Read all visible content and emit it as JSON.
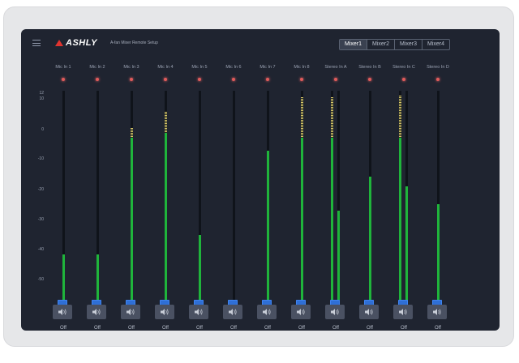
{
  "app": {
    "brand": "ASHLY",
    "subtitle": "A-fan Mixer Remote Setup"
  },
  "mixer_tabs": [
    {
      "label": "Mixer1",
      "active": true
    },
    {
      "label": "Mixer2",
      "active": false
    },
    {
      "label": "Mixer3",
      "active": false
    },
    {
      "label": "Mixer4",
      "active": false
    }
  ],
  "scale_ticks": [
    "12",
    "10",
    "0",
    "-10",
    "-20",
    "-30",
    "-40",
    "-50"
  ],
  "channels": [
    {
      "name": "Mic In 1",
      "mute_label": "Off"
    },
    {
      "name": "Mic In 2",
      "mute_label": "Off"
    },
    {
      "name": "Mic In 3",
      "mute_label": "Off"
    },
    {
      "name": "Mic In 4",
      "mute_label": "Off"
    },
    {
      "name": "Mic In 5",
      "mute_label": "Off"
    },
    {
      "name": "Mic In 6",
      "mute_label": "Off"
    },
    {
      "name": "Mic In 7",
      "mute_label": "Off"
    },
    {
      "name": "Mic In 8",
      "mute_label": "Off"
    },
    {
      "name": "Stereo In A",
      "mute_label": "Off"
    },
    {
      "name": "Stereo In B",
      "mute_label": "Off"
    },
    {
      "name": "Stereo In C",
      "mute_label": "Off"
    },
    {
      "name": "Stereo In D",
      "mute_label": "Off"
    }
  ],
  "icons": {
    "menu": "hamburger-menu-icon",
    "clip": "clip-led-icon",
    "mute": "speaker-icon"
  },
  "colors": {
    "screen_bg": "#1f2430",
    "meter_green": "#1fb43b",
    "meter_hot": "#d9c86a",
    "fader_blue": "#2f6fd6",
    "clip_red": "#e05b5b"
  }
}
